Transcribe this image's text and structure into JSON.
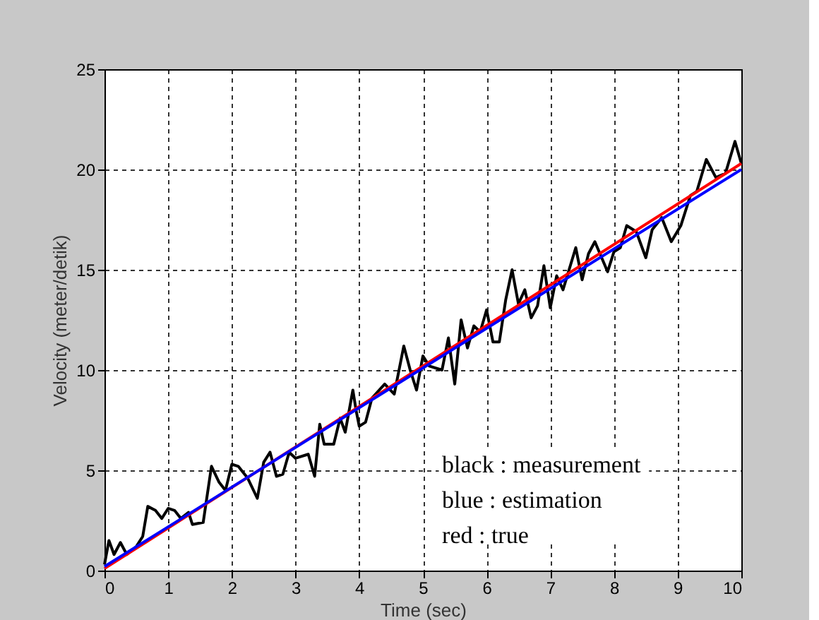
{
  "chart_data": {
    "type": "line",
    "xlabel": "Time (sec)",
    "ylabel": "Velocity (meter/detik)",
    "xlim": [
      0,
      10
    ],
    "ylim": [
      0,
      25
    ],
    "xticks": [
      0,
      1,
      2,
      3,
      4,
      5,
      6,
      7,
      8,
      9,
      10
    ],
    "yticks": [
      0,
      5,
      10,
      15,
      20,
      25
    ],
    "grid": true,
    "line_style": "solid",
    "marker": "none",
    "series": [
      {
        "color": "#000000",
        "x": [
          0,
          0.07,
          0.15,
          0.25,
          0.35,
          0.5,
          0.6,
          0.68,
          0.8,
          0.9,
          1.0,
          1.1,
          1.2,
          1.32,
          1.38,
          1.55,
          1.68,
          1.8,
          1.9,
          2.0,
          2.1,
          2.25,
          2.4,
          2.5,
          2.6,
          2.7,
          2.8,
          2.9,
          3.0,
          3.2,
          3.3,
          3.38,
          3.45,
          3.6,
          3.7,
          3.78,
          3.9,
          3.95,
          4.0,
          4.1,
          4.2,
          4.4,
          4.55,
          4.7,
          4.8,
          4.9,
          5.0,
          5.1,
          5.3,
          5.4,
          5.5,
          5.6,
          5.7,
          5.8,
          5.9,
          6.0,
          6.1,
          6.2,
          6.3,
          6.4,
          6.5,
          6.6,
          6.7,
          6.8,
          6.9,
          7.0,
          7.1,
          7.2,
          7.4,
          7.5,
          7.6,
          7.7,
          7.9,
          8.0,
          8.1,
          8.2,
          8.35,
          8.5,
          8.6,
          8.75,
          8.9,
          9.05,
          9.2,
          9.3,
          9.45,
          9.6,
          9.75,
          9.9,
          10.0
        ],
        "values": [
          0.3,
          1.5,
          0.8,
          1.4,
          0.8,
          1.2,
          1.7,
          3.2,
          3.0,
          2.6,
          3.1,
          3.0,
          2.6,
          2.9,
          2.3,
          2.4,
          5.2,
          4.4,
          4.0,
          5.3,
          5.2,
          4.6,
          3.6,
          5.4,
          5.9,
          4.7,
          4.8,
          5.9,
          5.6,
          5.8,
          4.7,
          7.3,
          6.3,
          6.3,
          7.6,
          6.9,
          9.0,
          8.0,
          7.2,
          7.4,
          8.6,
          9.3,
          8.8,
          11.2,
          10.0,
          9.0,
          10.7,
          10.2,
          10.0,
          11.6,
          9.3,
          12.5,
          11.1,
          12.2,
          11.9,
          13.0,
          11.4,
          11.4,
          13.5,
          15.0,
          13.3,
          14.0,
          12.6,
          13.2,
          15.2,
          13.1,
          14.7,
          14.0,
          16.1,
          14.5,
          15.8,
          16.4,
          14.9,
          15.9,
          16.1,
          17.2,
          16.9,
          15.6,
          17.0,
          17.6,
          16.4,
          17.2,
          18.7,
          18.9,
          20.5,
          19.6,
          19.8,
          21.4,
          20.3
        ]
      },
      {
        "color": "#ff0000",
        "x": [
          0,
          10
        ],
        "values": [
          0.1,
          20.3
        ]
      },
      {
        "color": "#0000ff",
        "x": [
          0,
          10
        ],
        "values": [
          0.2,
          20.0
        ]
      }
    ],
    "annotations": [
      "black  :  measurement",
      "blue    :  estimation",
      "red      :  true"
    ]
  }
}
